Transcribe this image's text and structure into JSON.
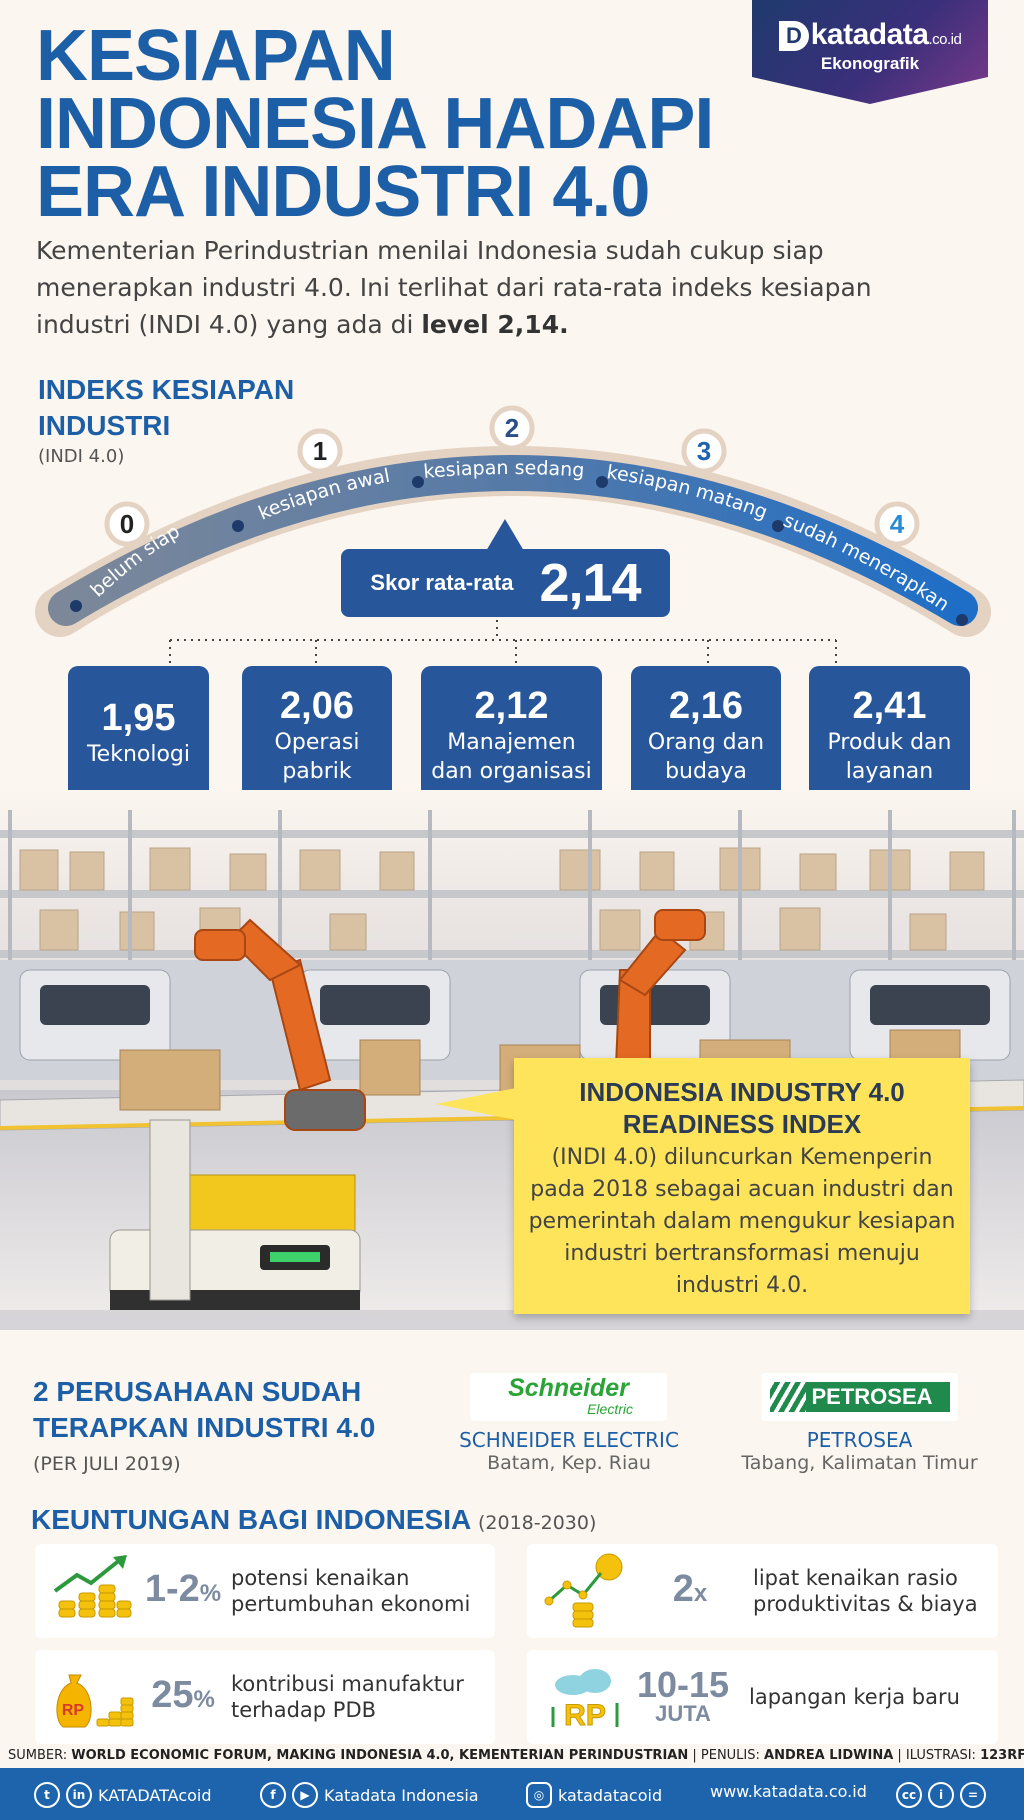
{
  "header": {
    "title_lines": [
      "KESIAPAN",
      "INDONESIA HADAPI",
      "ERA INDUSTRI 4.0"
    ],
    "logo": {
      "brand": "katadata",
      "suffix": ".co.id",
      "section": "Ekonografik"
    },
    "intro_text": "Kementerian Perindustrian menilai Indonesia sudah cukup siap menerapkan industri 4.0. Ini terlihat dari rata-rata indeks kesiapan industri (INDI 4.0) yang ada di ",
    "intro_highlight": "level 2,14."
  },
  "index": {
    "title": "INDEKS KESIAPAN INDUSTRI",
    "subtitle": "(INDI 4.0)",
    "levels": [
      {
        "number": "0",
        "label": "belum siap"
      },
      {
        "number": "1",
        "label": "kesiapan awal"
      },
      {
        "number": "2",
        "label": "kesiapan sedang"
      },
      {
        "number": "3",
        "label": "kesiapan matang"
      },
      {
        "number": "4",
        "label": "sudah menerapkan"
      }
    ],
    "score_label": "Skor rata-rata",
    "score_value": "2,14",
    "score_numeric": 2.14,
    "dimensions": [
      {
        "value": "1,95",
        "label": "Teknologi"
      },
      {
        "value": "2,06",
        "label": "Operasi pabrik"
      },
      {
        "value": "2,12",
        "label": "Manajemen dan organisasi"
      },
      {
        "value": "2,16",
        "label": "Orang dan budaya"
      },
      {
        "value": "2,41",
        "label": "Produk dan layanan"
      }
    ],
    "colors": {
      "arc_fill": "#2a74c4",
      "arc_empty": "#8a97a8",
      "card": "#27569a"
    }
  },
  "info": {
    "title_lines": [
      "INDONESIA INDUSTRY 4.0",
      "READINESS INDEX"
    ],
    "body": "(INDI 4.0) diluncurkan Kemenperin pada 2018 sebagai acuan industri dan pemerintah dalam mengukur kesiapan industri bertransformasi menuju industri 4.0."
  },
  "companies": {
    "title": "2 PERUSAHAAN SUDAH TERAPKAN INDUSTRI 4.0",
    "subtitle": "(PER JULI 2019)",
    "items": [
      {
        "logo_text": "Schneider",
        "logo_sub": "Electric",
        "name": "SCHNEIDER ELECTRIC",
        "location": "Batam, Kep. Riau"
      },
      {
        "logo_text": "PETROSEA",
        "name": "PETROSEA",
        "location": "Tabang, Kalimatan Timur"
      }
    ]
  },
  "benefits": {
    "title": "KEUNTUNGAN BAGI INDONESIA",
    "period": "(2018-2030)",
    "items": [
      {
        "icon": "growth-chart-coins-icon",
        "value": "1-2",
        "unit": "%",
        "text": "potensi kenaikan pertumbuhan ekonomi"
      },
      {
        "icon": "productivity-coins-icon",
        "value": "2",
        "unit": "x",
        "text": "lipat kenaikan rasio produktivitas & biaya"
      },
      {
        "icon": "money-bag-icon",
        "value": "25",
        "unit": "%",
        "text": "kontribusi manufaktur terhadap PDB"
      },
      {
        "icon": "rupiah-cloud-icon",
        "value": "10-15",
        "unit": "JUTA",
        "text": "lapangan kerja baru"
      }
    ]
  },
  "source": {
    "sumber_label": "SUMBER:",
    "sumber": "WORLD ECONOMIC FORUM, MAKING INDONESIA 4.0, KEMENTERIAN PERINDUSTRIAN",
    "penulis_label": "| PENULIS:",
    "penulis": "ANDREA LIDWINA",
    "ilustrasi_label": "| ILUSTRASI:",
    "ilustrasi": "123RF"
  },
  "footer": {
    "social_1": "KATADATAcoid",
    "social_2": "Katadata Indonesia",
    "social_3": "katadatacoid",
    "website": "www.katadata.co.id",
    "color": "#1e64ad"
  }
}
